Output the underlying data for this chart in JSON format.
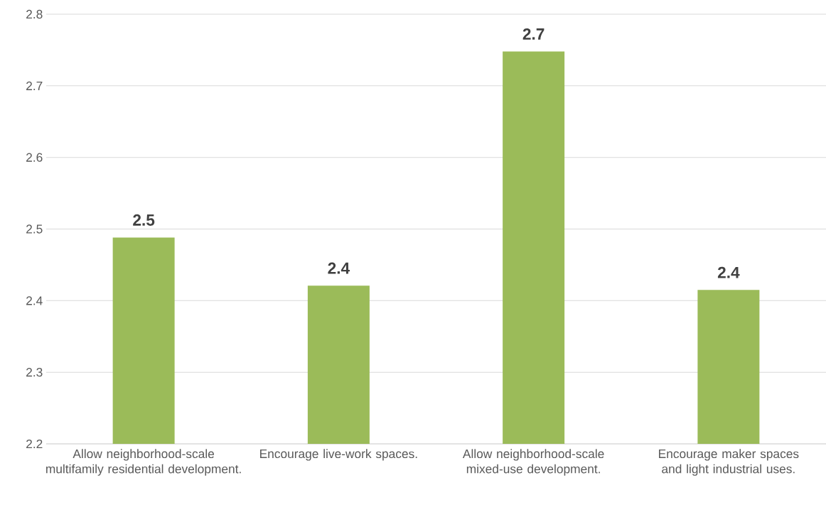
{
  "chart_data": {
    "type": "bar",
    "categories": [
      "Allow neighborhood-scale multifamily residential development.",
      "Encourage live-work spaces.",
      "Allow neighborhood-scale mixed-use development.",
      "Encourage maker spaces and light industrial uses."
    ],
    "values": [
      2.488,
      2.421,
      2.748,
      2.415
    ],
    "value_labels": [
      "2.5",
      "2.4",
      "2.7",
      "2.4"
    ],
    "color": "#9bbb59",
    "ylim": [
      2.2,
      2.8
    ],
    "yticks": [
      2.2,
      2.3,
      2.4,
      2.5,
      2.6,
      2.7,
      2.8
    ],
    "grid": "y"
  }
}
